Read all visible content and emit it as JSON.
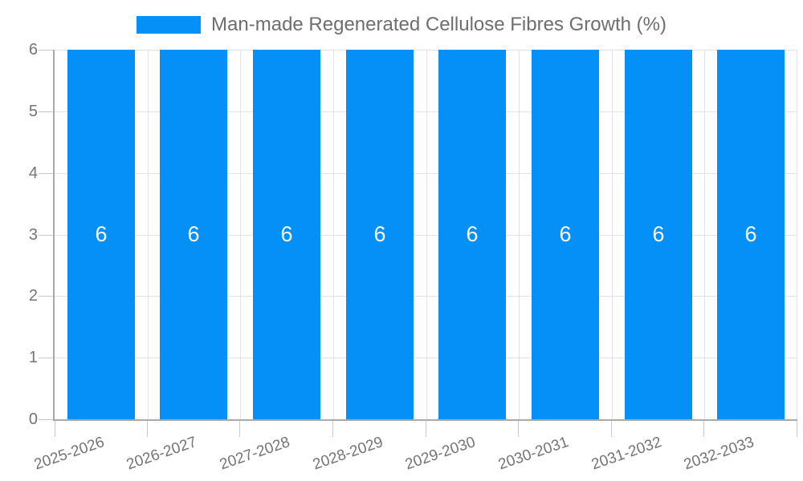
{
  "chart_data": {
    "type": "bar",
    "series_name": "Man-made Regenerated Cellulose Fibres Growth (%)",
    "categories": [
      "2025-2026",
      "2026-2027",
      "2027-2028",
      "2028-2029",
      "2029-2030",
      "2030-2031",
      "2031-2032",
      "2032-2033"
    ],
    "values": [
      6,
      6,
      6,
      6,
      6,
      6,
      6,
      6
    ],
    "value_labels": [
      "6",
      "6",
      "6",
      "6",
      "6",
      "6",
      "6",
      "6"
    ],
    "ylim": [
      0,
      6
    ],
    "yticks": [
      0,
      1,
      2,
      3,
      4,
      5,
      6
    ],
    "grid": true,
    "legend_position": "top",
    "xlabel": "",
    "ylabel": "",
    "colors": {
      "bar": "#0590f8",
      "gridline": "#e3e3e3",
      "axis_line": "#a9a9a9",
      "tick": "#c9c9c9",
      "axis_text": "#757575",
      "legend_text": "#6e6e6e",
      "value_text": "#ffffff"
    }
  }
}
